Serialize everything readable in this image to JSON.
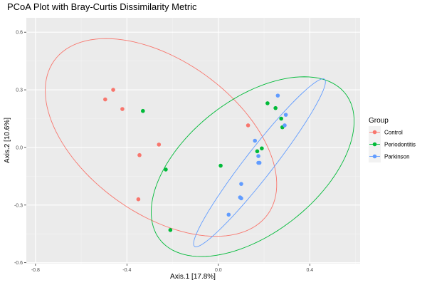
{
  "chart_data": {
    "type": "scatter",
    "title": "PCoA Plot with Bray-Curtis Dissimilarity Metric",
    "xlabel": "Axis.1   [17.8%]",
    "ylabel": "Axis.2   [10.6%]",
    "xlim": [
      -0.84,
      0.62
    ],
    "ylim": [
      -0.605,
      0.675
    ],
    "x_ticks": [
      -0.8,
      -0.4,
      0.0,
      0.4
    ],
    "x_tick_labels": [
      "-0.8",
      "-0.4",
      "0.0",
      "0.4"
    ],
    "y_ticks": [
      -0.6,
      -0.3,
      0.0,
      0.3,
      0.6
    ],
    "y_tick_labels": [
      "-0.6",
      "-0.3",
      "0.0",
      "0.3",
      "0.6"
    ],
    "grid": true,
    "legend": {
      "title": "Group",
      "position": "right"
    },
    "series": [
      {
        "name": "Control",
        "color": "#F8766D",
        "x": [
          -0.46,
          -0.495,
          -0.42,
          -0.26,
          -0.345,
          -0.35,
          0.13
        ],
        "y": [
          0.3,
          0.25,
          0.2,
          0.015,
          -0.04,
          -0.27,
          0.115
        ],
        "ellipse": {
          "cx": -0.251,
          "cy": 0.052,
          "rx": 0.62,
          "ry": 0.37,
          "angle": -46
        }
      },
      {
        "name": "Periodontitis",
        "color": "#00BA38",
        "x": [
          -0.33,
          -0.23,
          -0.21,
          0.01,
          0.215,
          0.25,
          0.275,
          0.28,
          0.19,
          0.17
        ],
        "y": [
          0.19,
          -0.115,
          -0.43,
          -0.095,
          0.23,
          0.205,
          0.15,
          0.105,
          -0.005,
          -0.02
        ],
        "ellipse": {
          "cx": 0.15,
          "cy": -0.1,
          "rx": 0.56,
          "ry": 0.32,
          "angle": 48
        }
      },
      {
        "name": "Parkinson",
        "color": "#619CFF",
        "x": [
          0.26,
          0.295,
          0.29,
          0.16,
          0.175,
          0.18,
          0.175,
          0.1,
          0.095,
          0.1,
          0.045
        ],
        "y": [
          0.27,
          0.17,
          0.115,
          0.035,
          -0.045,
          -0.08,
          -0.08,
          -0.19,
          -0.26,
          -0.265,
          -0.35
        ],
        "ellipse": {
          "cx": 0.18,
          "cy": -0.08,
          "rx": 0.52,
          "ry": 0.065,
          "angle": 57
        }
      }
    ]
  }
}
